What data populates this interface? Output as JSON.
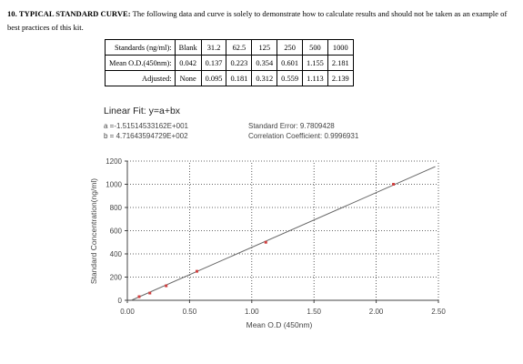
{
  "section": {
    "number": "10.",
    "heading": "TYPICAL STANDARD CURVE:",
    "text": "The following data and curve is solely to demonstrate how to calculate results and should not be taken as an example of best practices of this kit."
  },
  "table": {
    "rows": [
      {
        "header": "Standards (ng/ml):",
        "cells": [
          "Blank",
          "31.2",
          "62.5",
          "125",
          "250",
          "500",
          "1000"
        ]
      },
      {
        "header": "Mean O.D.(450nm):",
        "cells": [
          "0.042",
          "0.137",
          "0.223",
          "0.354",
          "0.601",
          "1.155",
          "2.181"
        ]
      },
      {
        "header": "Adjusted:",
        "cells": [
          "None",
          "0.095",
          "0.181",
          "0.312",
          "0.559",
          "1.113",
          "2.139"
        ]
      }
    ]
  },
  "fit": {
    "title": "Linear Fit: y=a+bx",
    "a": "a =-1.51514533162E+001",
    "b": "b = 4.71643594729E+002",
    "std_error": "Standard Error: 9.7809428",
    "corr": "Correlation Coefficient: 0.9996931"
  },
  "chart_data": {
    "type": "scatter",
    "xlabel": "Mean O.D (450nm)",
    "ylabel": "Standard Concentration(ng/ml)",
    "xlim": [
      0,
      2.5
    ],
    "ylim": [
      0,
      1200
    ],
    "x_ticks": [
      "0.00",
      "0.50",
      "1.00",
      "1.50",
      "2.00",
      "2.50"
    ],
    "y_ticks": [
      "0",
      "200",
      "400",
      "600",
      "800",
      "1000",
      "1200"
    ],
    "grid": true,
    "points": [
      {
        "x": 0.095,
        "y": 31.2
      },
      {
        "x": 0.181,
        "y": 62.5
      },
      {
        "x": 0.312,
        "y": 125
      },
      {
        "x": 0.559,
        "y": 250
      },
      {
        "x": 1.113,
        "y": 500
      },
      {
        "x": 2.139,
        "y": 1000
      }
    ],
    "fit_line": {
      "a": -15.1514533162,
      "b": 471.643594729
    },
    "colors": {
      "points": "#d04040",
      "line": "#666666",
      "grid": "#333333"
    }
  }
}
